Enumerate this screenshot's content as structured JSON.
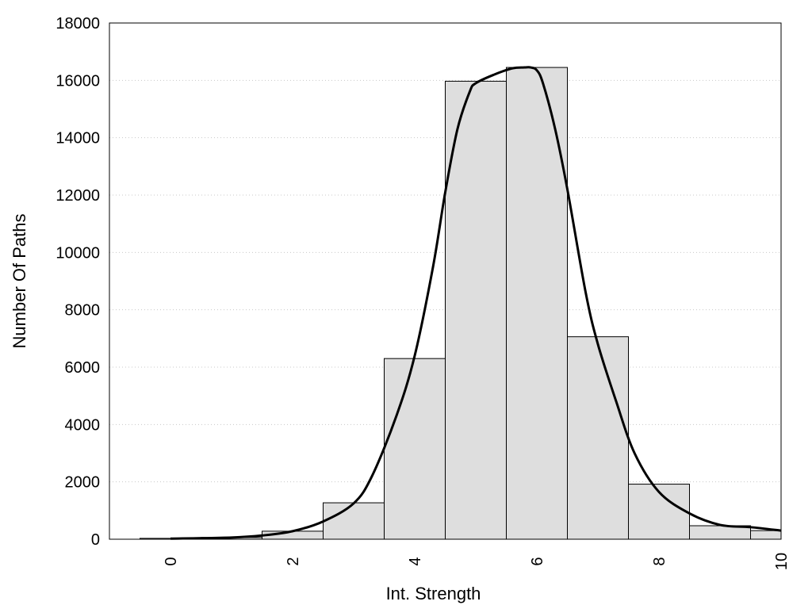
{
  "chart_data": {
    "type": "bar",
    "title": "",
    "xlabel": "Int. Strength",
    "ylabel": "Number Of Paths",
    "xlim": [
      -1,
      10
    ],
    "ylim": [
      0,
      18000
    ],
    "x_ticks": [
      0,
      2,
      4,
      6,
      8,
      10
    ],
    "y_ticks": [
      0,
      2000,
      4000,
      6000,
      8000,
      10000,
      12000,
      14000,
      16000,
      18000
    ],
    "grid": "horizontal dotted",
    "bar_width": 1,
    "bars": [
      {
        "x": 0,
        "value": 30
      },
      {
        "x": 1,
        "value": 60
      },
      {
        "x": 2,
        "value": 280
      },
      {
        "x": 3,
        "value": 1270
      },
      {
        "x": 4,
        "value": 6300
      },
      {
        "x": 5,
        "value": 15970
      },
      {
        "x": 6,
        "value": 16450
      },
      {
        "x": 7,
        "value": 7060
      },
      {
        "x": 8,
        "value": 1920
      },
      {
        "x": 9,
        "value": 470
      },
      {
        "x": 10,
        "value": 300
      }
    ],
    "density_curve": {
      "x": [
        0,
        1,
        1.5,
        2,
        2.5,
        3,
        3.3,
        3.7,
        4,
        4.3,
        4.5,
        4.7,
        4.9,
        5,
        5.3,
        5.6,
        5.8,
        5.9,
        6,
        6.1,
        6.3,
        6.5,
        6.8,
        7,
        7.3,
        7.6,
        8,
        8.5,
        9,
        9.5,
        10
      ],
      "y": [
        20,
        60,
        130,
        280,
        620,
        1250,
        2200,
        4300,
        6400,
        9500,
        12100,
        14300,
        15600,
        15900,
        16200,
        16420,
        16450,
        16450,
        16350,
        15900,
        14300,
        12200,
        8600,
        6800,
        4800,
        3000,
        1650,
        900,
        500,
        420,
        300
      ]
    },
    "colors": {
      "bar_fill": "#dedede",
      "bar_stroke": "#000000",
      "curve": "#000000",
      "grid": "#c8c8c8"
    }
  }
}
